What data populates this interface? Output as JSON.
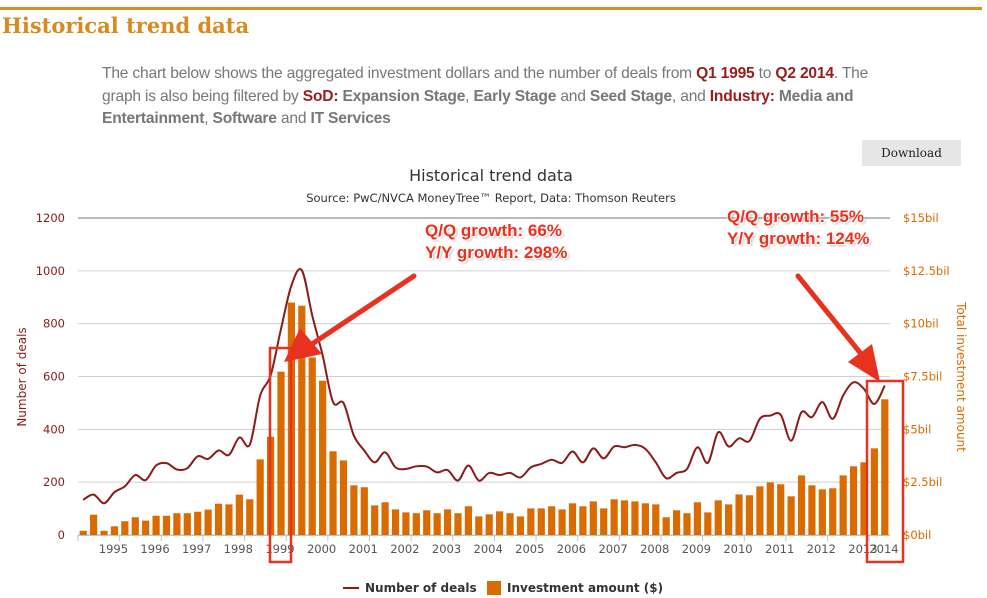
{
  "page": {
    "title": "Historical trend data",
    "intro": {
      "t1": "The chart below shows the aggregated investment dollars and the number of deals from ",
      "q1": "Q1 1995",
      "t2": " to ",
      "q2": "Q2 2014",
      "t3": ". The graph is also being filtered by ",
      "sod": "SoD:",
      "s1": "Expansion Stage",
      "t4": ", ",
      "s2": "Early Stage",
      "t5": " and ",
      "s3": "Seed Stage",
      "t6": ", and ",
      "ind": "Industry:",
      "i1": "Media and Entertainment",
      "t7": ", ",
      "i2": "Software",
      "t8": " and ",
      "i3": "IT Services"
    },
    "download_label": "Download"
  },
  "annotations": {
    "left": {
      "qq": "Q/Q growth: 66%",
      "yy": "Y/Y growth: 298%"
    },
    "right": {
      "qq": "Q/Q growth: 55%",
      "yy": "Y/Y growth: 124%"
    },
    "color": "#e8321f"
  },
  "chart_data": {
    "type": "bar+line",
    "title": "Historical trend data",
    "subtitle": "Source: PwC/NVCA MoneyTree™ Report, Data: Thomson Reuters",
    "xlabel": "",
    "ylabel": "Number of deals",
    "y2label": "Total investment amount",
    "ylim": [
      0,
      1200
    ],
    "y2lim": [
      0,
      15
    ],
    "yticks": [
      "0",
      "200",
      "400",
      "600",
      "800",
      "1000",
      "1200"
    ],
    "y2ticks": [
      "$0bil",
      "$2.5bil",
      "$5bil",
      "$7.5bil",
      "$10bil",
      "$12.5bil",
      "$15bil"
    ],
    "xticks": [
      "1995",
      "1996",
      "1997",
      "1998",
      "1999",
      "2000",
      "2001",
      "2002",
      "2003",
      "2004",
      "2005",
      "2006",
      "2007",
      "2008",
      "2009",
      "2010",
      "2011",
      "2012",
      "2013",
      "2014"
    ],
    "legend": {
      "placement": "bottom",
      "items": [
        "Number of deals",
        "Investment amount ($)"
      ]
    },
    "colors": {
      "deals": "#8b1a1a",
      "investment": "#d96b00",
      "left_axis": "#8b1a1a",
      "right_axis": "#d96b00"
    },
    "series": [
      {
        "name": "Investment amount ($)",
        "type": "bar",
        "unit": "billion USD",
        "values": [
          0.2,
          0.96,
          0.2,
          0.41,
          0.65,
          0.84,
          0.68,
          0.91,
          0.91,
          1.03,
          1.03,
          1.1,
          1.2,
          1.48,
          1.45,
          1.91,
          1.69,
          3.58,
          4.65,
          7.73,
          11.0,
          10.85,
          8.4,
          7.3,
          3.96,
          3.53,
          2.35,
          2.26,
          1.4,
          1.55,
          1.21,
          1.07,
          1.03,
          1.17,
          1.03,
          1.21,
          1.03,
          1.36,
          0.88,
          0.98,
          1.12,
          1.03,
          0.88,
          1.26,
          1.26,
          1.36,
          1.21,
          1.5,
          1.36,
          1.59,
          1.26,
          1.69,
          1.64,
          1.59,
          1.5,
          1.45,
          0.84,
          1.17,
          1.03,
          1.55,
          1.07,
          1.64,
          1.45,
          1.92,
          1.88,
          2.3,
          2.49,
          2.4,
          1.83,
          2.82,
          2.35,
          2.16,
          2.21,
          2.82,
          3.25,
          3.44,
          4.1,
          6.42
        ]
      },
      {
        "name": "Number of deals",
        "type": "line",
        "values": [
          133,
          153,
          120,
          162,
          184,
          227,
          208,
          263,
          272,
          248,
          253,
          298,
          288,
          320,
          303,
          369,
          342,
          528,
          604,
          780,
          945,
          1002,
          831,
          680,
          503,
          500,
          376,
          320,
          275,
          313,
          256,
          250,
          260,
          259,
          237,
          246,
          206,
          263,
          206,
          235,
          227,
          235,
          218,
          256,
          269,
          285,
          273,
          316,
          275,
          328,
          290,
          335,
          332,
          341,
          326,
          275,
          215,
          235,
          250,
          332,
          273,
          389,
          335,
          366,
          356,
          440,
          452,
          455,
          357,
          465,
          446,
          503,
          440,
          528,
          578,
          553,
          496,
          566
        ]
      }
    ]
  }
}
